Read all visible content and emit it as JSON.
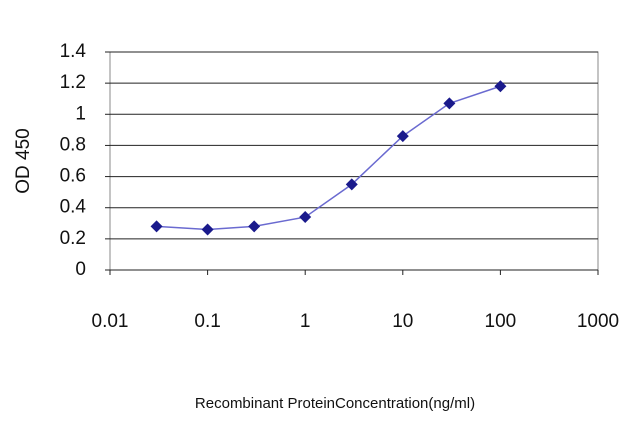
{
  "chart_data": {
    "type": "line",
    "x_label": "Recombinant ProteinConcentration(ng/ml)",
    "y_label": "OD 450",
    "x": [
      0.03,
      0.1,
      0.3,
      1,
      3,
      10,
      30,
      100
    ],
    "values": [
      0.28,
      0.26,
      0.28,
      0.34,
      0.55,
      0.86,
      1.07,
      1.18
    ],
    "color": "#6a6ad0",
    "marker_color": "#1a1a8c",
    "xscale": "log",
    "xlim": [
      0.01,
      1000
    ],
    "xticks": [
      0.01,
      0.1,
      1,
      10,
      100,
      1000
    ],
    "ylim": [
      0,
      1.4
    ],
    "yticks": [
      0,
      0.2,
      0.4,
      0.6,
      0.8,
      1,
      1.2,
      1.4
    ],
    "grid": true
  }
}
